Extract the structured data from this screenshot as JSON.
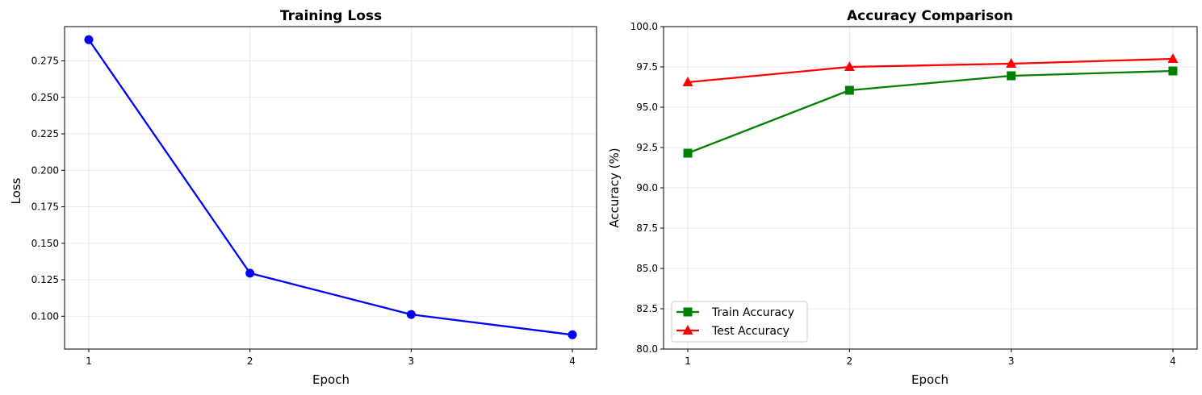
{
  "chart_data": [
    {
      "type": "line",
      "title": "Training Loss",
      "xlabel": "Epoch",
      "ylabel": "Loss",
      "x": [
        1,
        2,
        3,
        4
      ],
      "xticks": [
        "1",
        "2",
        "3",
        "4"
      ],
      "xlim": [
        0.85,
        4.15
      ],
      "ylim": [
        0.0775,
        0.2985
      ],
      "yticks": [
        "0.100",
        "0.125",
        "0.150",
        "0.175",
        "0.200",
        "0.225",
        "0.250",
        "0.275"
      ],
      "grid": true,
      "series": [
        {
          "values": [
            0.2895,
            0.1295,
            0.1012,
            0.0873
          ],
          "color": "#0000ff",
          "marker": "circle"
        }
      ]
    },
    {
      "type": "line",
      "title": "Accuracy Comparison",
      "xlabel": "Epoch",
      "ylabel": "Accuracy (%)",
      "x": [
        1,
        2,
        3,
        4
      ],
      "xticks": [
        "1",
        "2",
        "3",
        "4"
      ],
      "xlim": [
        0.85,
        4.15
      ],
      "ylim": [
        80,
        100
      ],
      "yticks": [
        "80.0",
        "82.5",
        "85.0",
        "87.5",
        "90.0",
        "92.5",
        "95.0",
        "97.5",
        "100.0"
      ],
      "grid": true,
      "legend": "lower-left",
      "series": [
        {
          "name": "Train Accuracy",
          "values": [
            92.15,
            96.05,
            96.95,
            97.25
          ],
          "color": "#008000",
          "marker": "square"
        },
        {
          "name": "Test Accuracy",
          "values": [
            96.55,
            97.5,
            97.7,
            98.0
          ],
          "color": "#ff0000",
          "marker": "triangle"
        }
      ]
    }
  ]
}
